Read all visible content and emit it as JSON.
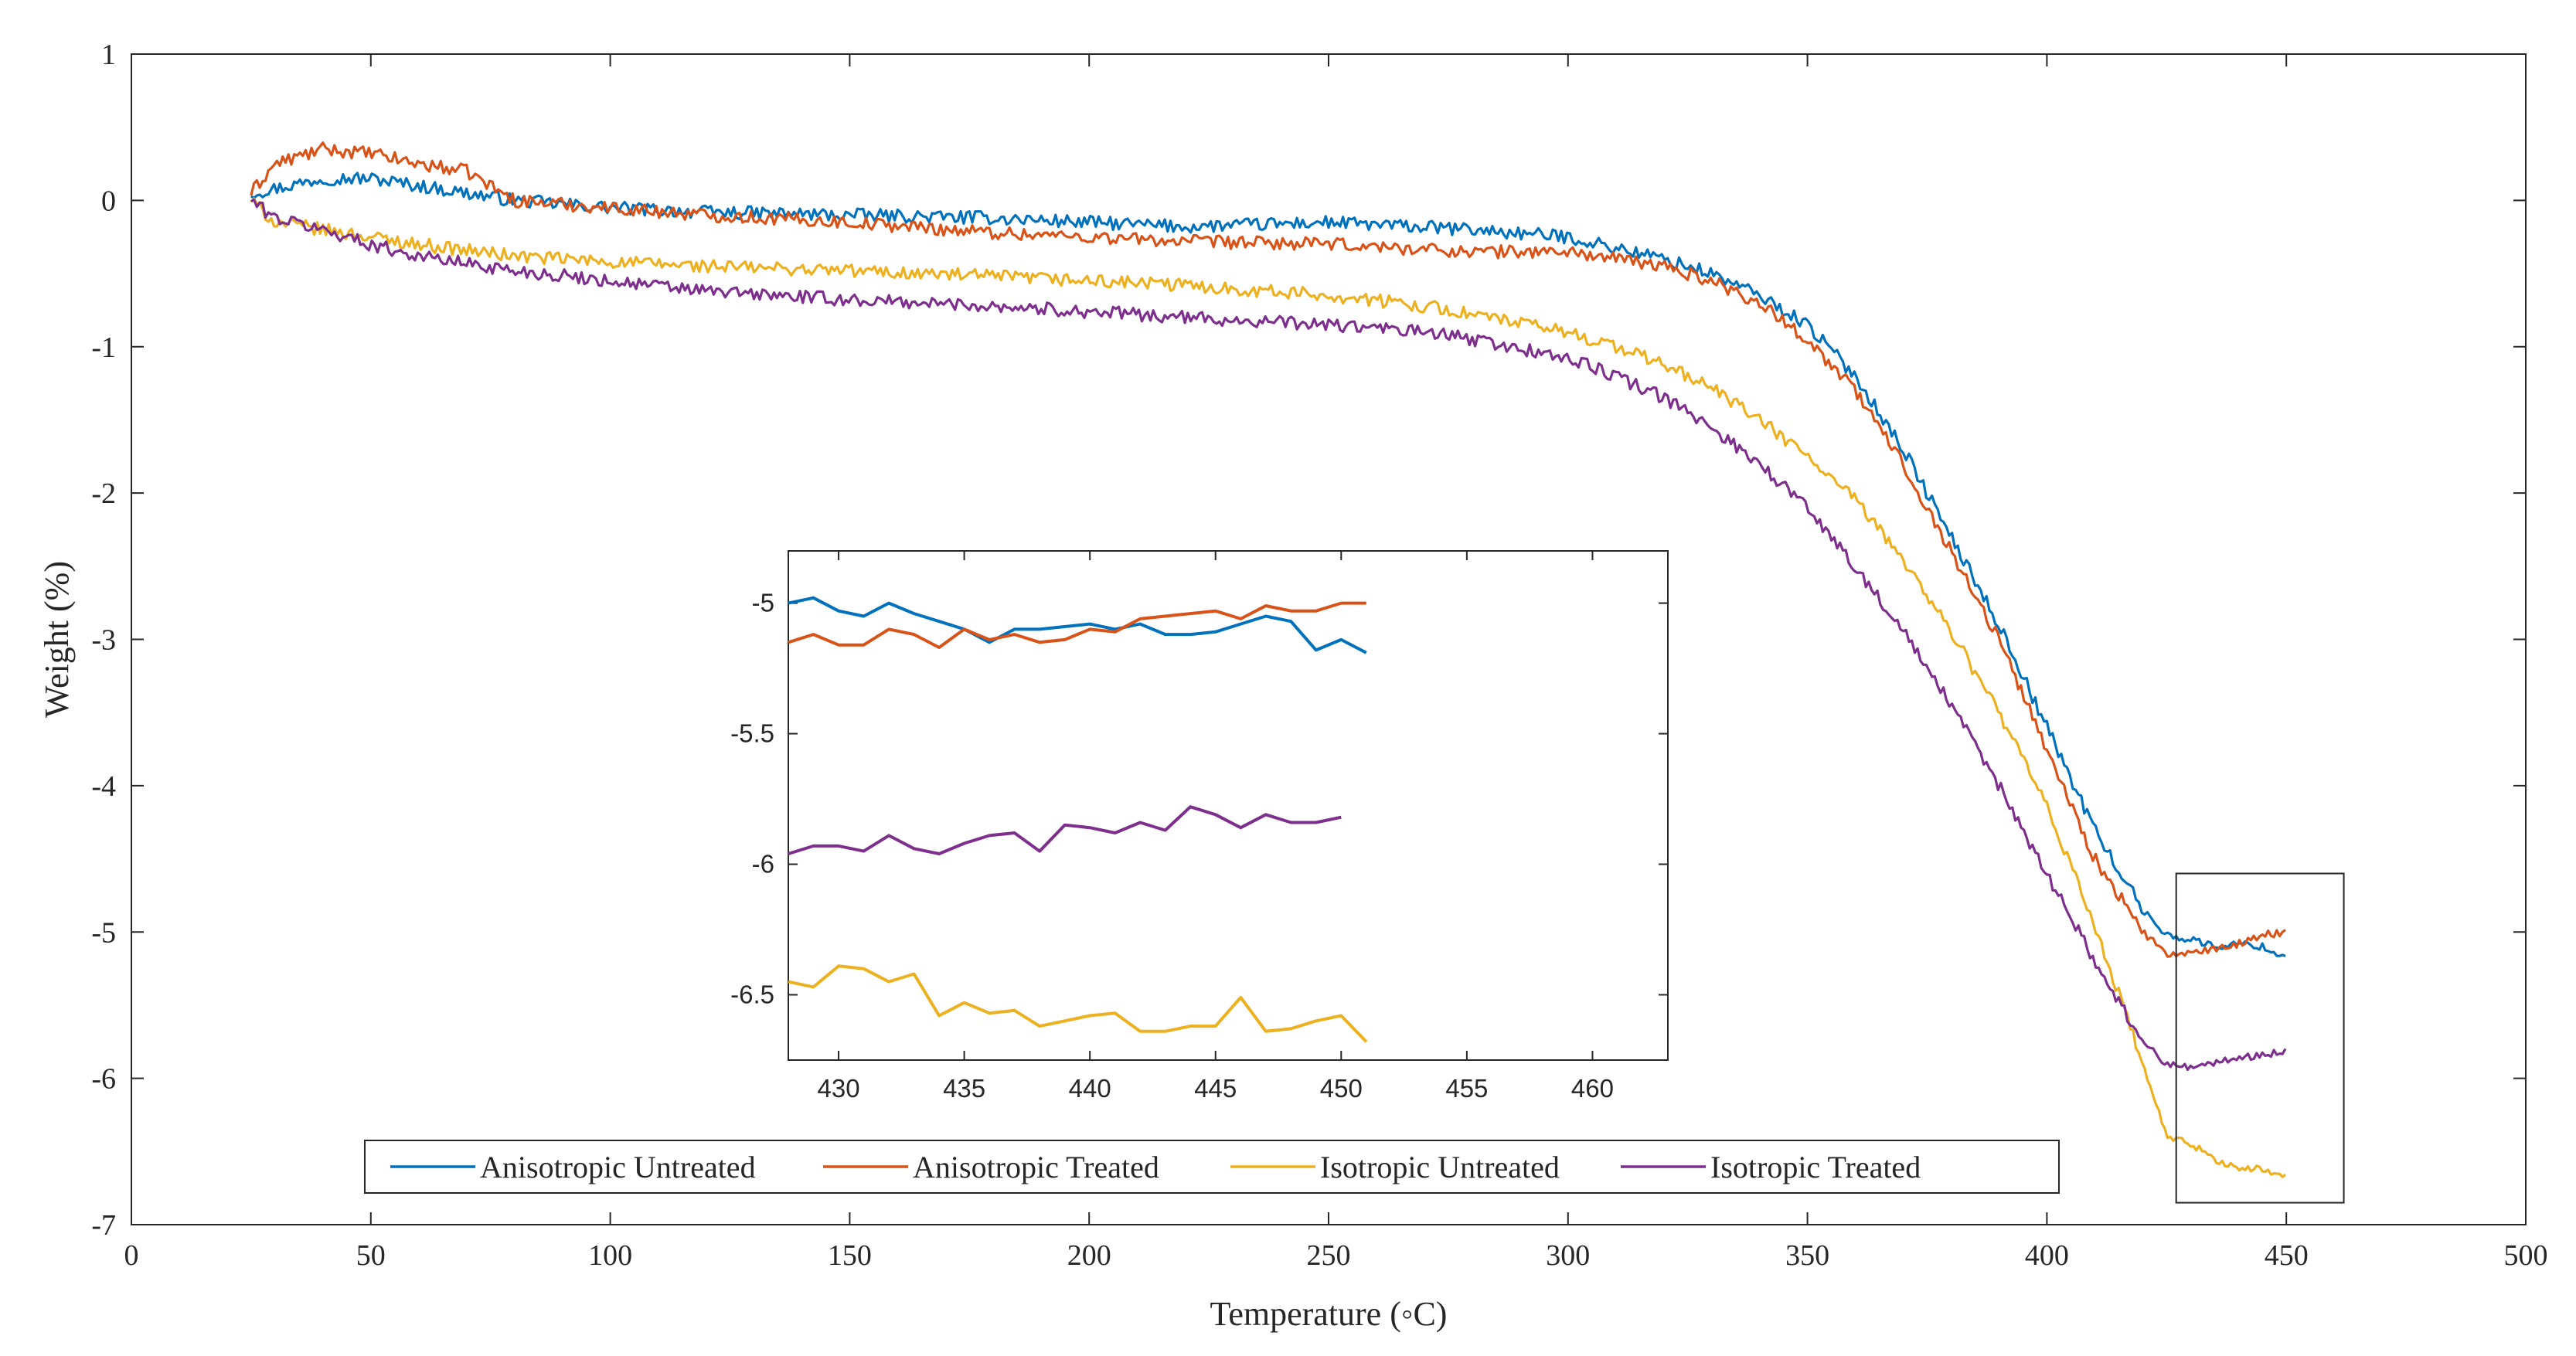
{
  "chart_data": {
    "type": "line",
    "title": "",
    "xlabel": "Temperature (◦C)",
    "ylabel": "Weight (%)",
    "xlim": [
      0,
      500
    ],
    "ylim": [
      -7,
      1
    ],
    "xticks": [
      "0",
      "50",
      "100",
      "150",
      "200",
      "250",
      "300",
      "350",
      "400",
      "450",
      "500"
    ],
    "yticks": [
      "1",
      "0",
      "-1",
      "-2",
      "-3",
      "-4",
      "-5",
      "-6",
      "-7"
    ],
    "legend_position": "bottom-center",
    "series": [
      {
        "name": "Anisotropic Untreated",
        "color": "#0072BD",
        "x": [
          25,
          30,
          40,
          50,
          60,
          70,
          80,
          100,
          120,
          150,
          180,
          200,
          220,
          250,
          280,
          300,
          320,
          330,
          340,
          350,
          360,
          370,
          380,
          390,
          400,
          410,
          420,
          425,
          430,
          435,
          440,
          445,
          450
        ],
        "y": [
          0.05,
          0.08,
          0.15,
          0.15,
          0.1,
          0.05,
          0.0,
          -0.05,
          -0.08,
          -0.1,
          -0.12,
          -0.15,
          -0.18,
          -0.15,
          -0.2,
          -0.25,
          -0.4,
          -0.5,
          -0.65,
          -0.85,
          -1.2,
          -1.7,
          -2.3,
          -2.9,
          -3.6,
          -4.3,
          -4.85,
          -5.02,
          -5.05,
          -5.1,
          -5.08,
          -5.1,
          -5.18
        ]
      },
      {
        "name": "Anisotropic Treated",
        "color": "#D95319",
        "x": [
          25,
          30,
          40,
          50,
          60,
          70,
          80,
          100,
          120,
          150,
          180,
          200,
          220,
          250,
          280,
          300,
          320,
          330,
          340,
          350,
          360,
          370,
          380,
          390,
          400,
          410,
          420,
          425,
          430,
          435,
          440,
          445,
          450
        ],
        "y": [
          0.05,
          0.25,
          0.35,
          0.32,
          0.25,
          0.2,
          0.0,
          -0.05,
          -0.1,
          -0.15,
          -0.22,
          -0.25,
          -0.28,
          -0.3,
          -0.35,
          -0.35,
          -0.45,
          -0.55,
          -0.7,
          -0.95,
          -1.3,
          -1.8,
          -2.4,
          -3.0,
          -3.75,
          -4.5,
          -5.0,
          -5.15,
          -5.15,
          -5.12,
          -5.08,
          -5.02,
          -5.0
        ]
      },
      {
        "name": "Isotropic Untreated",
        "color": "#EDB120",
        "x": [
          25,
          30,
          40,
          50,
          60,
          80,
          100,
          120,
          150,
          180,
          200,
          220,
          250,
          270,
          280,
          300,
          310,
          320,
          330,
          340,
          350,
          360,
          370,
          380,
          390,
          400,
          410,
          420,
          425,
          430,
          435,
          440,
          445,
          450
        ],
        "y": [
          0.0,
          -0.15,
          -0.2,
          -0.25,
          -0.3,
          -0.38,
          -0.42,
          -0.45,
          -0.48,
          -0.52,
          -0.55,
          -0.58,
          -0.65,
          -0.72,
          -0.78,
          -0.9,
          -1.0,
          -1.12,
          -1.28,
          -1.5,
          -1.75,
          -2.05,
          -2.45,
          -2.95,
          -3.5,
          -4.15,
          -4.95,
          -5.9,
          -6.4,
          -6.45,
          -6.55,
          -6.62,
          -6.62,
          -6.68
        ]
      },
      {
        "name": "Isotropic Treated",
        "color": "#7E2F8E",
        "x": [
          25,
          30,
          40,
          50,
          60,
          80,
          100,
          120,
          150,
          180,
          200,
          220,
          250,
          270,
          280,
          300,
          310,
          320,
          330,
          340,
          350,
          360,
          370,
          380,
          390,
          400,
          410,
          420,
          425,
          430,
          435,
          440,
          445,
          450
        ],
        "y": [
          0.0,
          -0.12,
          -0.2,
          -0.3,
          -0.38,
          -0.48,
          -0.55,
          -0.62,
          -0.68,
          -0.72,
          -0.76,
          -0.8,
          -0.85,
          -0.9,
          -0.95,
          -1.08,
          -1.2,
          -1.35,
          -1.55,
          -1.8,
          -2.1,
          -2.5,
          -2.95,
          -3.45,
          -4.0,
          -4.6,
          -5.2,
          -5.75,
          -5.9,
          -5.92,
          -5.9,
          -5.86,
          -5.84,
          -5.82
        ]
      }
    ],
    "inset": {
      "xlim": [
        428,
        463
      ],
      "ylim": [
        -6.75,
        -4.8
      ],
      "xticks": [
        "430",
        "435",
        "440",
        "445",
        "450",
        "455",
        "460"
      ],
      "yticks": [
        "-5",
        "-5.5",
        "-6",
        "-6.5"
      ],
      "series": [
        {
          "name": "Anisotropic Untreated",
          "color": "#0072BD",
          "x": [
            428,
            429,
            430,
            431,
            432,
            433,
            434,
            435,
            436,
            437,
            438,
            439,
            440,
            441,
            442,
            443,
            444,
            445,
            446,
            447,
            448,
            449,
            450,
            451
          ],
          "y": [
            -5.0,
            -4.98,
            -5.03,
            -5.05,
            -5.0,
            -5.04,
            -5.07,
            -5.1,
            -5.15,
            -5.1,
            -5.1,
            -5.09,
            -5.08,
            -5.1,
            -5.08,
            -5.12,
            -5.12,
            -5.11,
            -5.08,
            -5.05,
            -5.07,
            -5.18,
            -5.14,
            -5.19
          ]
        },
        {
          "name": "Anisotropic Treated",
          "color": "#D95319",
          "x": [
            428,
            429,
            430,
            431,
            432,
            433,
            434,
            435,
            436,
            437,
            438,
            439,
            440,
            441,
            442,
            443,
            444,
            445,
            446,
            447,
            448,
            449,
            450,
            451
          ],
          "y": [
            -5.15,
            -5.12,
            -5.16,
            -5.16,
            -5.1,
            -5.12,
            -5.17,
            -5.1,
            -5.14,
            -5.12,
            -5.15,
            -5.14,
            -5.1,
            -5.11,
            -5.06,
            -5.05,
            -5.04,
            -5.03,
            -5.06,
            -5.01,
            -5.03,
            -5.03,
            -5.0,
            -5.0
          ]
        },
        {
          "name": "Isotropic Untreated",
          "color": "#EDB120",
          "x": [
            428,
            429,
            430,
            431,
            432,
            433,
            434,
            435,
            436,
            437,
            438,
            439,
            440,
            441,
            442,
            443,
            444,
            445,
            446,
            447,
            448,
            449,
            450,
            451
          ],
          "y": [
            -6.45,
            -6.47,
            -6.39,
            -6.4,
            -6.45,
            -6.42,
            -6.58,
            -6.53,
            -6.57,
            -6.56,
            -6.62,
            -6.6,
            -6.58,
            -6.57,
            -6.64,
            -6.64,
            -6.62,
            -6.62,
            -6.51,
            -6.64,
            -6.63,
            -6.6,
            -6.58,
            -6.68
          ]
        },
        {
          "name": "Isotropic Treated",
          "color": "#7E2F8E",
          "x": [
            428,
            429,
            430,
            431,
            432,
            433,
            434,
            435,
            436,
            437,
            438,
            439,
            440,
            441,
            442,
            443,
            444,
            445,
            446,
            447,
            448,
            449,
            450
          ],
          "y": [
            -5.96,
            -5.93,
            -5.93,
            -5.95,
            -5.89,
            -5.94,
            -5.96,
            -5.92,
            -5.89,
            -5.88,
            -5.95,
            -5.85,
            -5.86,
            -5.88,
            -5.84,
            -5.87,
            -5.78,
            -5.81,
            -5.86,
            -5.81,
            -5.84,
            -5.84,
            -5.82
          ]
        }
      ]
    }
  }
}
